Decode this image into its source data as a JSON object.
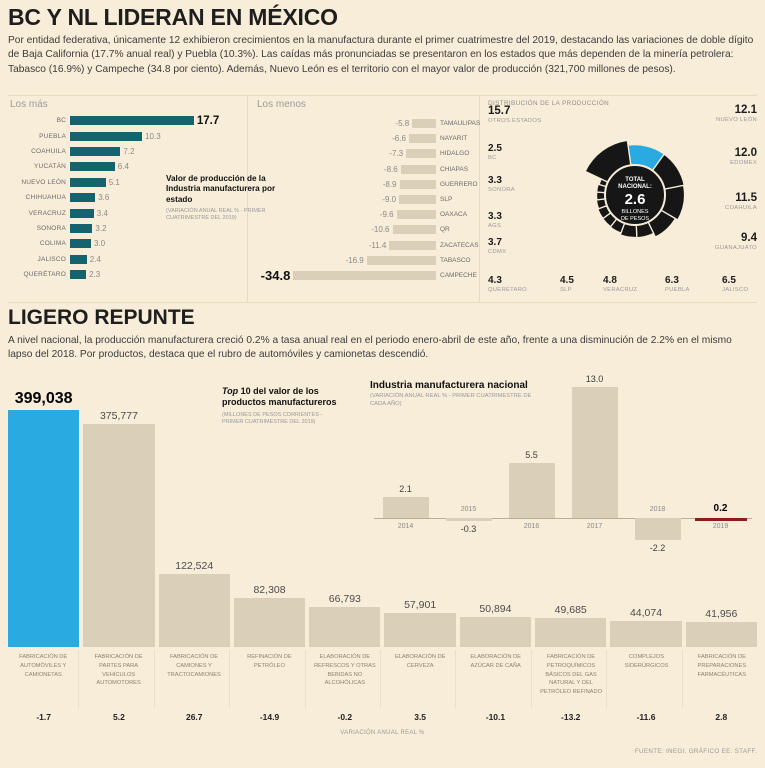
{
  "header": {
    "title": "BC Y NL LIDERAN EN MÉXICO",
    "intro": "Por entidad federativa, únicamente 12 exhibieron crecimientos en la manufactura durante el primer cuatrimestre del 2019, destacando las variaciones de doble dígito de Baja California (17.7% anual real) y Puebla (10.3%). Las caídas más pronunciadas se presentaron en los estados que más dependen de la minería petrolera: Tabasco (16.9%) y Campeche (34.8 por ciento). Además, Nuevo León es el territorio con el mayor valor de producción (321,700 millones de pesos)."
  },
  "middle_note": {
    "title": "Valor de producción de la Industria manufacturera por estado",
    "subtitle": "(VARIACIÓN ANUAL REAL % - PRIMER CUATRIMESTRE DEL 2019)"
  },
  "section2": {
    "title": "LIGERO REPUNTE",
    "text": "A nivel nacional, la producción manufacturera creció 0.2% a tasa anual real en el periodo enero-abril de este año, frente a una disminución de 2.2% en el mismo lapso del 2018. Por productos, destaca que el rubro de automóviles y camionetas descendió."
  },
  "footer": "FUENTE: INEGI. GRÁFICO EE: STAFF.",
  "colors": {
    "background": "#f7edd9",
    "teal": "#14636e",
    "beige": "#dad0ba",
    "cyan": "#29abe2",
    "donut_black": "#161616",
    "red": "#8e1c1c"
  },
  "chart_data": [
    {
      "id": "los_mas",
      "type": "bar",
      "orientation": "horizontal",
      "title": "Los más",
      "categories": [
        "BC",
        "PUEBLA",
        "COAHUILA",
        "YUCATÁN",
        "NUEVO LEÓN",
        "CHIHUAHUA",
        "VERACRUZ",
        "SONORA",
        "COLIMA",
        "JALISCO",
        "QUERÉTARO"
      ],
      "values": [
        17.7,
        10.3,
        7.2,
        6.4,
        5.1,
        3.6,
        3.4,
        3.2,
        3.0,
        2.4,
        2.3
      ],
      "value_labels": [
        "17.7",
        "10.3",
        "7.2",
        "6.4",
        "5.1",
        "3.6",
        "3.4",
        "3.2",
        "3.0",
        "2.4",
        "2.3"
      ]
    },
    {
      "id": "los_menos",
      "type": "bar",
      "orientation": "horizontal",
      "title": "Los menos",
      "categories": [
        "TAMAULIPAS",
        "NAYARIT",
        "HIDALGO",
        "CHIAPAS",
        "GUERRERO",
        "SLP",
        "OAXACA",
        "QR",
        "ZACATECAS",
        "TABASCO",
        "CAMPECHE"
      ],
      "values": [
        -5.8,
        -6.6,
        -7.3,
        -8.6,
        -8.9,
        -9.0,
        -9.6,
        -10.6,
        -11.4,
        -16.9,
        -34.8
      ],
      "value_labels": [
        "-5.8",
        "-6.6",
        "-7.3",
        "-8.6",
        "-8.9",
        "-9.0",
        "-9.6",
        "-10.6",
        "-11.4",
        "-16.9",
        "-34.8"
      ]
    },
    {
      "id": "distribucion_produccion",
      "type": "pie",
      "title": "DISTRIBUCIÓN DE LA PRODUCCIÓN",
      "center": {
        "top1": "TOTAL",
        "top2": "NACIONAL:",
        "big": "2.6",
        "bottom1": "BILLONES",
        "bottom2": "DE PESOS"
      },
      "slices": [
        {
          "label": "NUEVO LEÓN",
          "value": 12.1,
          "display": "12.1",
          "color": "#29abe2"
        },
        {
          "label": "EDOMEX",
          "value": 12.0,
          "display": "12.0"
        },
        {
          "label": "COAHUILA",
          "value": 11.5,
          "display": "11.5"
        },
        {
          "label": "GUANAJUATO",
          "value": 9.4,
          "display": "9.4"
        },
        {
          "label": "JALISCO",
          "value": 6.5,
          "display": "6.5"
        },
        {
          "label": "PUEBLA",
          "value": 6.3,
          "display": "6.3"
        },
        {
          "label": "VERACRUZ",
          "value": 4.8,
          "display": "4.8"
        },
        {
          "label": "SLP",
          "value": 4.5,
          "display": "4.5"
        },
        {
          "label": "QUERÉTARO",
          "value": 4.3,
          "display": "4.3"
        },
        {
          "label": "CDMX",
          "value": 3.7,
          "display": "3.7"
        },
        {
          "label": "AGS",
          "value": 3.3,
          "display": "3.3"
        },
        {
          "label": "SONORA",
          "value": 3.3,
          "display": "3.3"
        },
        {
          "label": "BC",
          "value": 2.5,
          "display": "2.5"
        },
        {
          "label": "OTROS ESTADOS",
          "value": 15.7,
          "display": "15.7"
        }
      ]
    },
    {
      "id": "top10_productos",
      "type": "bar",
      "title_em": "Top",
      "title_rest": " 10 del valor de los productos manufactureros",
      "subtitle": "(MILLONES DE PESOS CORRIENTES - PRIMER CUATRIMESTRE DEL 2019)",
      "axis_caption": "VARIACIÓN ANUAL REAL %",
      "categories": [
        "FABRICACIÓN DE AUTOMÓVILES Y CAMIONETAS",
        "FABRICACIÓN DE PARTES PARA VEHÍCULOS AUTOMOTORES",
        "FABRICACIÓN DE CAMIONES Y TRACTOCAMIONES",
        "REFINACIÓN DE PETRÓLEO",
        "ELABORACIÓN DE REFRESCOS Y OTRAS BEBIDAS NO ALCOHÓLICAS",
        "ELABORACIÓN DE CERVEZA",
        "ELABORACIÓN DE AZÚCAR DE CAÑA",
        "FABRICACIÓN DE PETROQUÍMICOS BÁSICOS DEL GAS NATURAL Y DEL PETRÓLEO REFINADO",
        "COMPLEJOS SIDERÚRGICOS",
        "FABRICACIÓN DE PREPARACIONES FARMACÉUTICAS"
      ],
      "values": [
        399038,
        375777,
        122524,
        82308,
        66793,
        57901,
        50894,
        49685,
        44074,
        41956
      ],
      "value_labels": [
        "399,038",
        "375,777",
        "122,524",
        "82,308",
        "66,793",
        "57,901",
        "50,894",
        "49,685",
        "44,074",
        "41,956"
      ],
      "variation_labels": [
        "-1.7",
        "5.2",
        "26.7",
        "-14.9",
        "-0.2",
        "3.5",
        "-10.1",
        "-13.2",
        "-11.6",
        "2.8"
      ]
    },
    {
      "id": "industria_nacional",
      "type": "bar",
      "title": "Industria manufacturera nacional",
      "subtitle": "(VARIACIÓN ANUAL REAL % - PRIMER CUATRIMESTRE DE CADA AÑO)",
      "categories": [
        "2014",
        "2015",
        "2016",
        "2017",
        "2018",
        "2019"
      ],
      "values": [
        2.1,
        -0.3,
        5.5,
        13.0,
        -2.2,
        0.2
      ],
      "value_labels": [
        "2.1",
        "-0.3",
        "5.5",
        "13.0",
        "-2.2",
        "0.2"
      ]
    }
  ]
}
